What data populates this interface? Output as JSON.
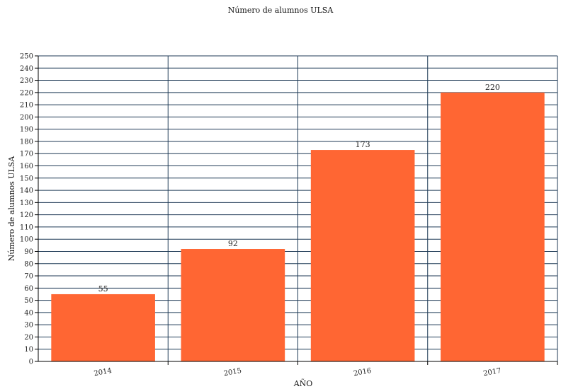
{
  "chart_data": {
    "type": "bar",
    "title": "Número de alumnos ULSA",
    "xlabel": "AÑO",
    "ylabel": "Número de alumnos ULSA",
    "categories": [
      "2014",
      "2015",
      "2016",
      "2017"
    ],
    "series": [
      {
        "values": [
          55,
          92,
          173,
          220
        ],
        "color": "#ff6633"
      }
    ],
    "data_labels": [
      "55",
      "92",
      "173",
      "220"
    ],
    "ylim": [
      0,
      250
    ],
    "y_tick_step": 10,
    "grid": true
  },
  "colors": {
    "bar": "#ff6633",
    "grid": "#1f3a56",
    "background": "#ffffff"
  }
}
